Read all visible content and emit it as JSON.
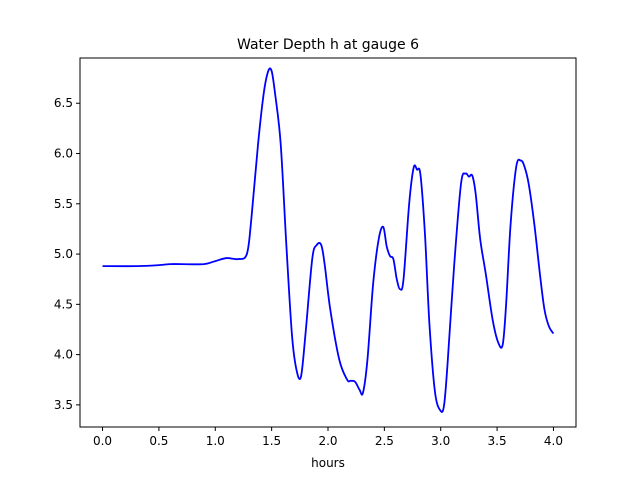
{
  "chart_data": {
    "type": "line",
    "title": "Water Depth h at gauge 6",
    "xlabel": "hours",
    "ylabel": "",
    "xlim": [
      -0.2,
      4.2
    ],
    "ylim": [
      3.28,
      6.95
    ],
    "xticks": [
      0.0,
      0.5,
      1.0,
      1.5,
      2.0,
      2.5,
      3.0,
      3.5,
      4.0
    ],
    "xtick_labels": [
      "0.0",
      "0.5",
      "1.0",
      "1.5",
      "2.0",
      "2.5",
      "3.0",
      "3.5",
      "4.0"
    ],
    "yticks": [
      3.5,
      4.0,
      4.5,
      5.0,
      5.5,
      6.0,
      6.5
    ],
    "ytick_labels": [
      "3.5",
      "4.0",
      "4.5",
      "5.0",
      "5.5",
      "6.0",
      "6.5"
    ],
    "grid": false,
    "series": [
      {
        "color": "#0000ff",
        "x": [
          0.0,
          0.3,
          0.5,
          0.6,
          0.7,
          0.9,
          1.0,
          1.1,
          1.2,
          1.28,
          1.32,
          1.38,
          1.43,
          1.47,
          1.5,
          1.53,
          1.58,
          1.63,
          1.68,
          1.72,
          1.76,
          1.8,
          1.86,
          1.9,
          1.94,
          1.97,
          2.02,
          2.1,
          2.17,
          2.2,
          2.24,
          2.28,
          2.31,
          2.35,
          2.4,
          2.45,
          2.49,
          2.52,
          2.55,
          2.58,
          2.61,
          2.64,
          2.67,
          2.72,
          2.76,
          2.79,
          2.82,
          2.86,
          2.9,
          2.95,
          3.0,
          3.03,
          3.06,
          3.12,
          3.18,
          3.22,
          3.25,
          3.28,
          3.31,
          3.35,
          3.4,
          3.46,
          3.51,
          3.55,
          3.58,
          3.62,
          3.67,
          3.71,
          3.74,
          3.78,
          3.83,
          3.88,
          3.92,
          3.96,
          4.0
        ],
        "y": [
          4.88,
          4.88,
          4.89,
          4.9,
          4.9,
          4.9,
          4.93,
          4.96,
          4.95,
          5.0,
          5.35,
          6.1,
          6.6,
          6.82,
          6.82,
          6.6,
          6.1,
          5.1,
          4.2,
          3.85,
          3.78,
          4.2,
          4.95,
          5.09,
          5.09,
          4.9,
          4.45,
          3.95,
          3.75,
          3.74,
          3.73,
          3.65,
          3.62,
          3.95,
          4.7,
          5.15,
          5.27,
          5.08,
          4.98,
          4.95,
          4.75,
          4.65,
          4.75,
          5.5,
          5.86,
          5.84,
          5.79,
          5.2,
          4.3,
          3.62,
          3.44,
          3.5,
          3.9,
          4.9,
          5.7,
          5.8,
          5.77,
          5.78,
          5.6,
          5.15,
          4.8,
          4.35,
          4.12,
          4.1,
          4.5,
          5.3,
          5.87,
          5.93,
          5.88,
          5.7,
          5.3,
          4.8,
          4.45,
          4.28,
          4.21
        ]
      }
    ]
  }
}
